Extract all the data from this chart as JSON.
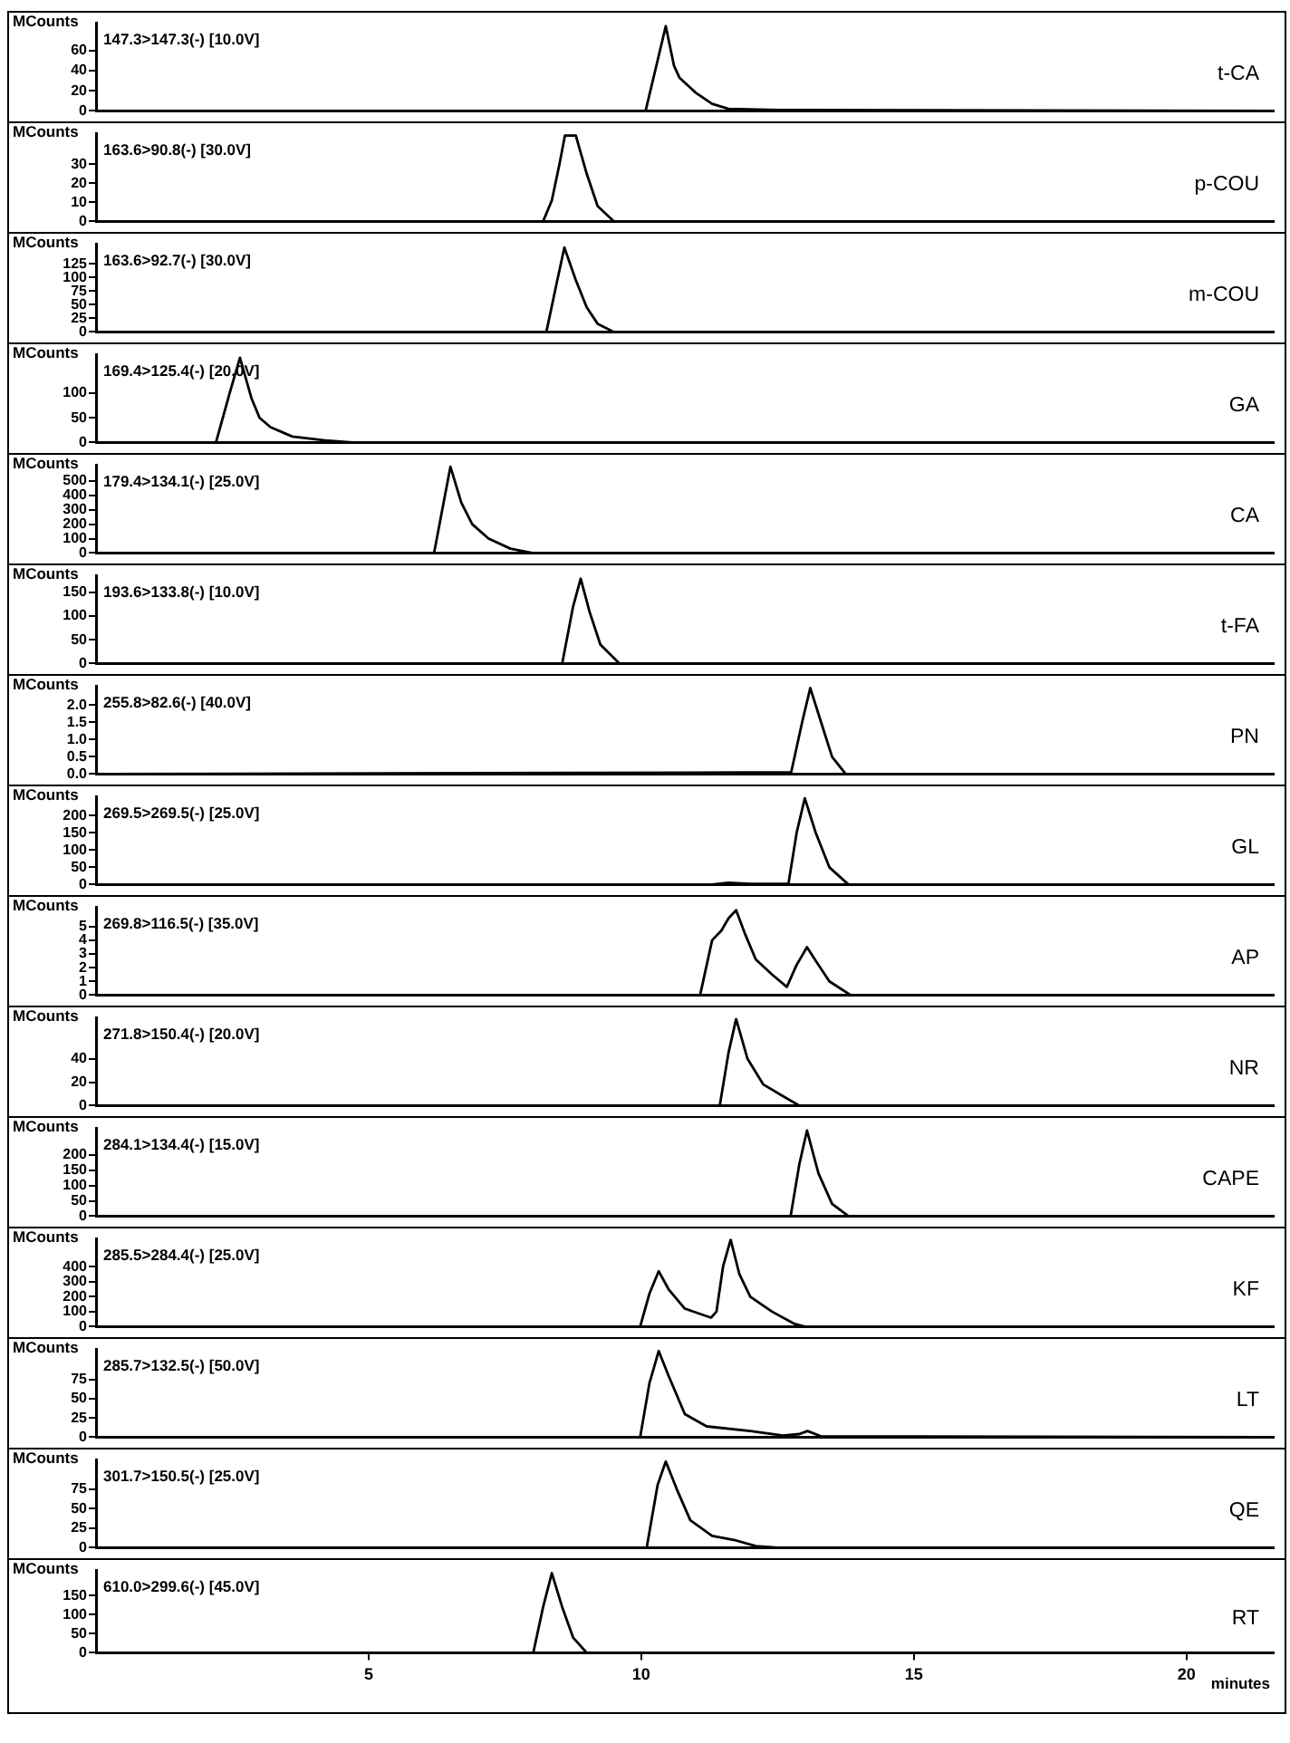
{
  "chart_data": [
    {
      "type": "line",
      "title": "t-CA",
      "ylabel": "MCounts",
      "annotations": [
        "147.3>147.3(-) [10.0V]"
      ],
      "color": "#000000",
      "xlim": [
        0,
        21.6
      ],
      "ylim": [
        0,
        87
      ],
      "yticks": [
        0,
        20,
        40,
        60
      ],
      "tick_labels": "y",
      "grid": false,
      "x": [
        0.2,
        10.08,
        10.3,
        10.45,
        10.6,
        10.7,
        11.0,
        11.3,
        11.6,
        12.5,
        21.5
      ],
      "values": [
        0,
        0,
        50,
        84,
        45,
        33,
        18,
        7,
        2,
        1,
        0
      ]
    },
    {
      "type": "line",
      "title": "p-COU",
      "ylabel": "MCounts",
      "annotations": [
        "163.6>90.8(-) [30.0V]"
      ],
      "color": "#000000",
      "xlim": [
        0,
        21.6
      ],
      "ylim": [
        0,
        46
      ],
      "yticks": [
        0,
        10,
        20,
        30
      ],
      "tick_labels": "y",
      "grid": false,
      "x": [
        0.2,
        8.2,
        8.36,
        8.5,
        8.6,
        8.8,
        9.0,
        9.2,
        9.5,
        21.5
      ],
      "values": [
        0,
        0,
        11,
        30,
        45,
        45,
        25,
        8,
        0,
        0
      ]
    },
    {
      "type": "line",
      "title": "m-COU",
      "ylabel": "MCounts",
      "annotations": [
        "163.6>92.7(-) [30.0V]"
      ],
      "color": "#000000",
      "xlim": [
        0,
        21.6
      ],
      "ylim": [
        0,
        161
      ],
      "yticks": [
        0,
        25,
        50,
        75,
        100,
        125
      ],
      "tick_labels": "y",
      "grid": false,
      "x": [
        0.2,
        8.26,
        8.45,
        8.59,
        8.8,
        9.0,
        9.2,
        9.5,
        21.5
      ],
      "values": [
        0,
        0,
        90,
        155,
        95,
        45,
        15,
        0,
        0
      ]
    },
    {
      "type": "line",
      "title": "GA",
      "ylabel": "MCounts",
      "annotations": [
        "169.4>125.4(-) [20.0V]"
      ],
      "color": "#000000",
      "xlim": [
        0,
        21.6
      ],
      "ylim": [
        0,
        178
      ],
      "yticks": [
        0,
        50,
        100
      ],
      "tick_labels": "y",
      "grid": false,
      "x": [
        0.2,
        2.2,
        2.45,
        2.64,
        2.85,
        3.0,
        3.2,
        3.6,
        4.2,
        4.7,
        21.5
      ],
      "values": [
        0,
        0,
        100,
        172,
        90,
        50,
        31,
        12,
        4,
        0,
        0
      ]
    },
    {
      "type": "line",
      "title": "CA",
      "ylabel": "MCounts",
      "annotations": [
        "179.4>134.1(-) [25.0V]"
      ],
      "color": "#000000",
      "xlim": [
        0,
        21.6
      ],
      "ylim": [
        0,
        610
      ],
      "yticks": [
        0,
        100,
        200,
        300,
        400,
        500
      ],
      "tick_labels": "y",
      "grid": false,
      "x": [
        0.2,
        6.2,
        6.35,
        6.5,
        6.7,
        6.9,
        7.2,
        7.6,
        8.0,
        21.5
      ],
      "values": [
        0,
        0,
        300,
        600,
        350,
        200,
        100,
        30,
        0,
        0
      ]
    },
    {
      "type": "line",
      "title": "t-FA",
      "ylabel": "MCounts",
      "annotations": [
        "193.6>133.8(-) [10.0V]"
      ],
      "color": "#000000",
      "xlim": [
        0,
        21.6
      ],
      "ylim": [
        0,
        185
      ],
      "yticks": [
        0,
        50,
        100,
        150
      ],
      "tick_labels": "y",
      "grid": false,
      "x": [
        0.2,
        8.55,
        8.75,
        8.89,
        9.05,
        9.25,
        9.6,
        21.5
      ],
      "values": [
        0,
        0,
        120,
        179,
        110,
        40,
        0,
        0
      ]
    },
    {
      "type": "line",
      "title": "PN",
      "ylabel": "MCounts",
      "annotations": [
        "255.8>82.6(-) [40.0V]"
      ],
      "color": "#000000",
      "xlim": [
        0,
        21.6
      ],
      "ylim": [
        0,
        2.55
      ],
      "yticks": [
        {
          "value": 0,
          "label": "0.0"
        },
        {
          "value": 0.5,
          "label": "0.5"
        },
        {
          "value": 1,
          "label": "1.0"
        },
        {
          "value": 1.5,
          "label": "1.5"
        },
        {
          "value": 2,
          "label": "2.0"
        }
      ],
      "tick_labels": "y",
      "grid": false,
      "x": [
        0.2,
        12.75,
        12.95,
        13.1,
        13.3,
        13.5,
        13.75,
        21.5
      ],
      "values": [
        0,
        0.05,
        1.5,
        2.5,
        1.5,
        0.5,
        0,
        0
      ]
    },
    {
      "type": "line",
      "title": "GL",
      "ylabel": "MCounts",
      "annotations": [
        "269.5>269.5(-) [25.0V]"
      ],
      "color": "#000000",
      "xlim": [
        0,
        21.6
      ],
      "ylim": [
        0,
        254
      ],
      "yticks": [
        0,
        50,
        100,
        150,
        200
      ],
      "tick_labels": "y",
      "grid": false,
      "x": [
        0.2,
        11.3,
        11.6,
        12.0,
        12.7,
        12.85,
        13.0,
        13.2,
        13.45,
        13.8,
        21.5
      ],
      "values": [
        0,
        0,
        5,
        2,
        2,
        150,
        250,
        150,
        50,
        0,
        0
      ]
    },
    {
      "type": "line",
      "title": "AP",
      "ylabel": "MCounts",
      "annotations": [
        "269.8>116.5(-) [35.0V]"
      ],
      "color": "#000000",
      "xlim": [
        0,
        21.6
      ],
      "ylim": [
        0,
        6.4
      ],
      "yticks": [
        0,
        1,
        2,
        3,
        4,
        5
      ],
      "tick_labels": "y",
      "grid": false,
      "x": [
        0.2,
        11.08,
        11.3,
        11.47,
        11.6,
        11.74,
        11.9,
        12.1,
        12.4,
        12.67,
        12.85,
        13.04,
        13.2,
        13.45,
        13.84,
        21.5
      ],
      "values": [
        0,
        0,
        4,
        4.7,
        5.6,
        6.2,
        4.5,
        2.6,
        1.5,
        0.6,
        2.2,
        3.5,
        2.5,
        1,
        0,
        0
      ]
    },
    {
      "type": "line",
      "title": "NR",
      "ylabel": "MCounts",
      "annotations": [
        "271.8>150.4(-) [20.0V]"
      ],
      "color": "#000000",
      "xlim": [
        0,
        21.6
      ],
      "ylim": [
        0,
        75
      ],
      "yticks": [
        0,
        20,
        40
      ],
      "tick_labels": "y",
      "grid": false,
      "x": [
        0.2,
        11.44,
        11.6,
        11.74,
        11.95,
        12.24,
        12.6,
        12.9,
        21.5
      ],
      "values": [
        0,
        0,
        45,
        74,
        40,
        18,
        8,
        0,
        0
      ]
    },
    {
      "type": "line",
      "title": "CAPE",
      "ylabel": "MCounts",
      "annotations": [
        "284.1>134.4(-) [15.0V]"
      ],
      "color": "#000000",
      "xlim": [
        0,
        21.6
      ],
      "ylim": [
        0,
        287
      ],
      "yticks": [
        0,
        50,
        100,
        150,
        200
      ],
      "tick_labels": "y",
      "grid": false,
      "x": [
        0.2,
        12.74,
        12.9,
        13.04,
        13.25,
        13.5,
        13.8,
        21.5
      ],
      "values": [
        0,
        0,
        170,
        280,
        140,
        40,
        0,
        0
      ]
    },
    {
      "type": "line",
      "title": "KF",
      "ylabel": "MCounts",
      "annotations": [
        "285.5>284.4(-) [25.0V]"
      ],
      "color": "#000000",
      "xlim": [
        0,
        21.6
      ],
      "ylim": [
        0,
        585
      ],
      "yticks": [
        0,
        100,
        200,
        300,
        400
      ],
      "tick_labels": "y",
      "grid": false,
      "x": [
        0.2,
        9.98,
        10.15,
        10.32,
        10.5,
        10.8,
        11.28,
        11.38,
        11.5,
        11.64,
        11.8,
        12.0,
        12.4,
        12.8,
        13.0,
        21.5
      ],
      "values": [
        0,
        0,
        220,
        370,
        250,
        120,
        60,
        100,
        400,
        580,
        350,
        200,
        100,
        20,
        0,
        0
      ]
    },
    {
      "type": "line",
      "title": "LT",
      "ylabel": "MCounts",
      "annotations": [
        "285.7>132.5(-) [50.0V]"
      ],
      "color": "#000000",
      "xlim": [
        0,
        21.6
      ],
      "ylim": [
        0,
        114
      ],
      "yticks": [
        0,
        25,
        50,
        75
      ],
      "tick_labels": "y",
      "grid": false,
      "x": [
        0.2,
        9.98,
        10.15,
        10.32,
        10.5,
        10.8,
        11.2,
        12.0,
        12.6,
        12.9,
        13.05,
        13.3,
        21.5
      ],
      "values": [
        0,
        0,
        70,
        112,
        80,
        30,
        14,
        8,
        2,
        4,
        8,
        1,
        0
      ]
    },
    {
      "type": "line",
      "title": "QE",
      "ylabel": "MCounts",
      "annotations": [
        "301.7>150.5(-) [25.0V]"
      ],
      "color": "#000000",
      "xlim": [
        0,
        21.6
      ],
      "ylim": [
        0,
        112
      ],
      "yticks": [
        0,
        25,
        50,
        75
      ],
      "tick_labels": "y",
      "grid": false,
      "x": [
        0.2,
        10.1,
        10.3,
        10.45,
        10.65,
        10.9,
        11.3,
        11.7,
        12.1,
        12.5,
        21.5
      ],
      "values": [
        0,
        0,
        80,
        110,
        75,
        35,
        15,
        10,
        2,
        0,
        0
      ]
    },
    {
      "type": "line",
      "title": "RT",
      "ylabel": "MCounts",
      "xlabel": "minutes",
      "annotations": [
        "610.0>299.6(-) [45.0V]"
      ],
      "color": "#000000",
      "xlim": [
        0,
        21.6
      ],
      "ylim": [
        0,
        216
      ],
      "yticks": [
        0,
        50,
        100,
        150
      ],
      "xticks": [
        5,
        10,
        15,
        20
      ],
      "grid": false,
      "x": [
        0.2,
        8.02,
        8.2,
        8.36,
        8.55,
        8.75,
        9.0,
        21.5
      ],
      "values": [
        0,
        0,
        120,
        209,
        120,
        40,
        0,
        0
      ]
    }
  ]
}
